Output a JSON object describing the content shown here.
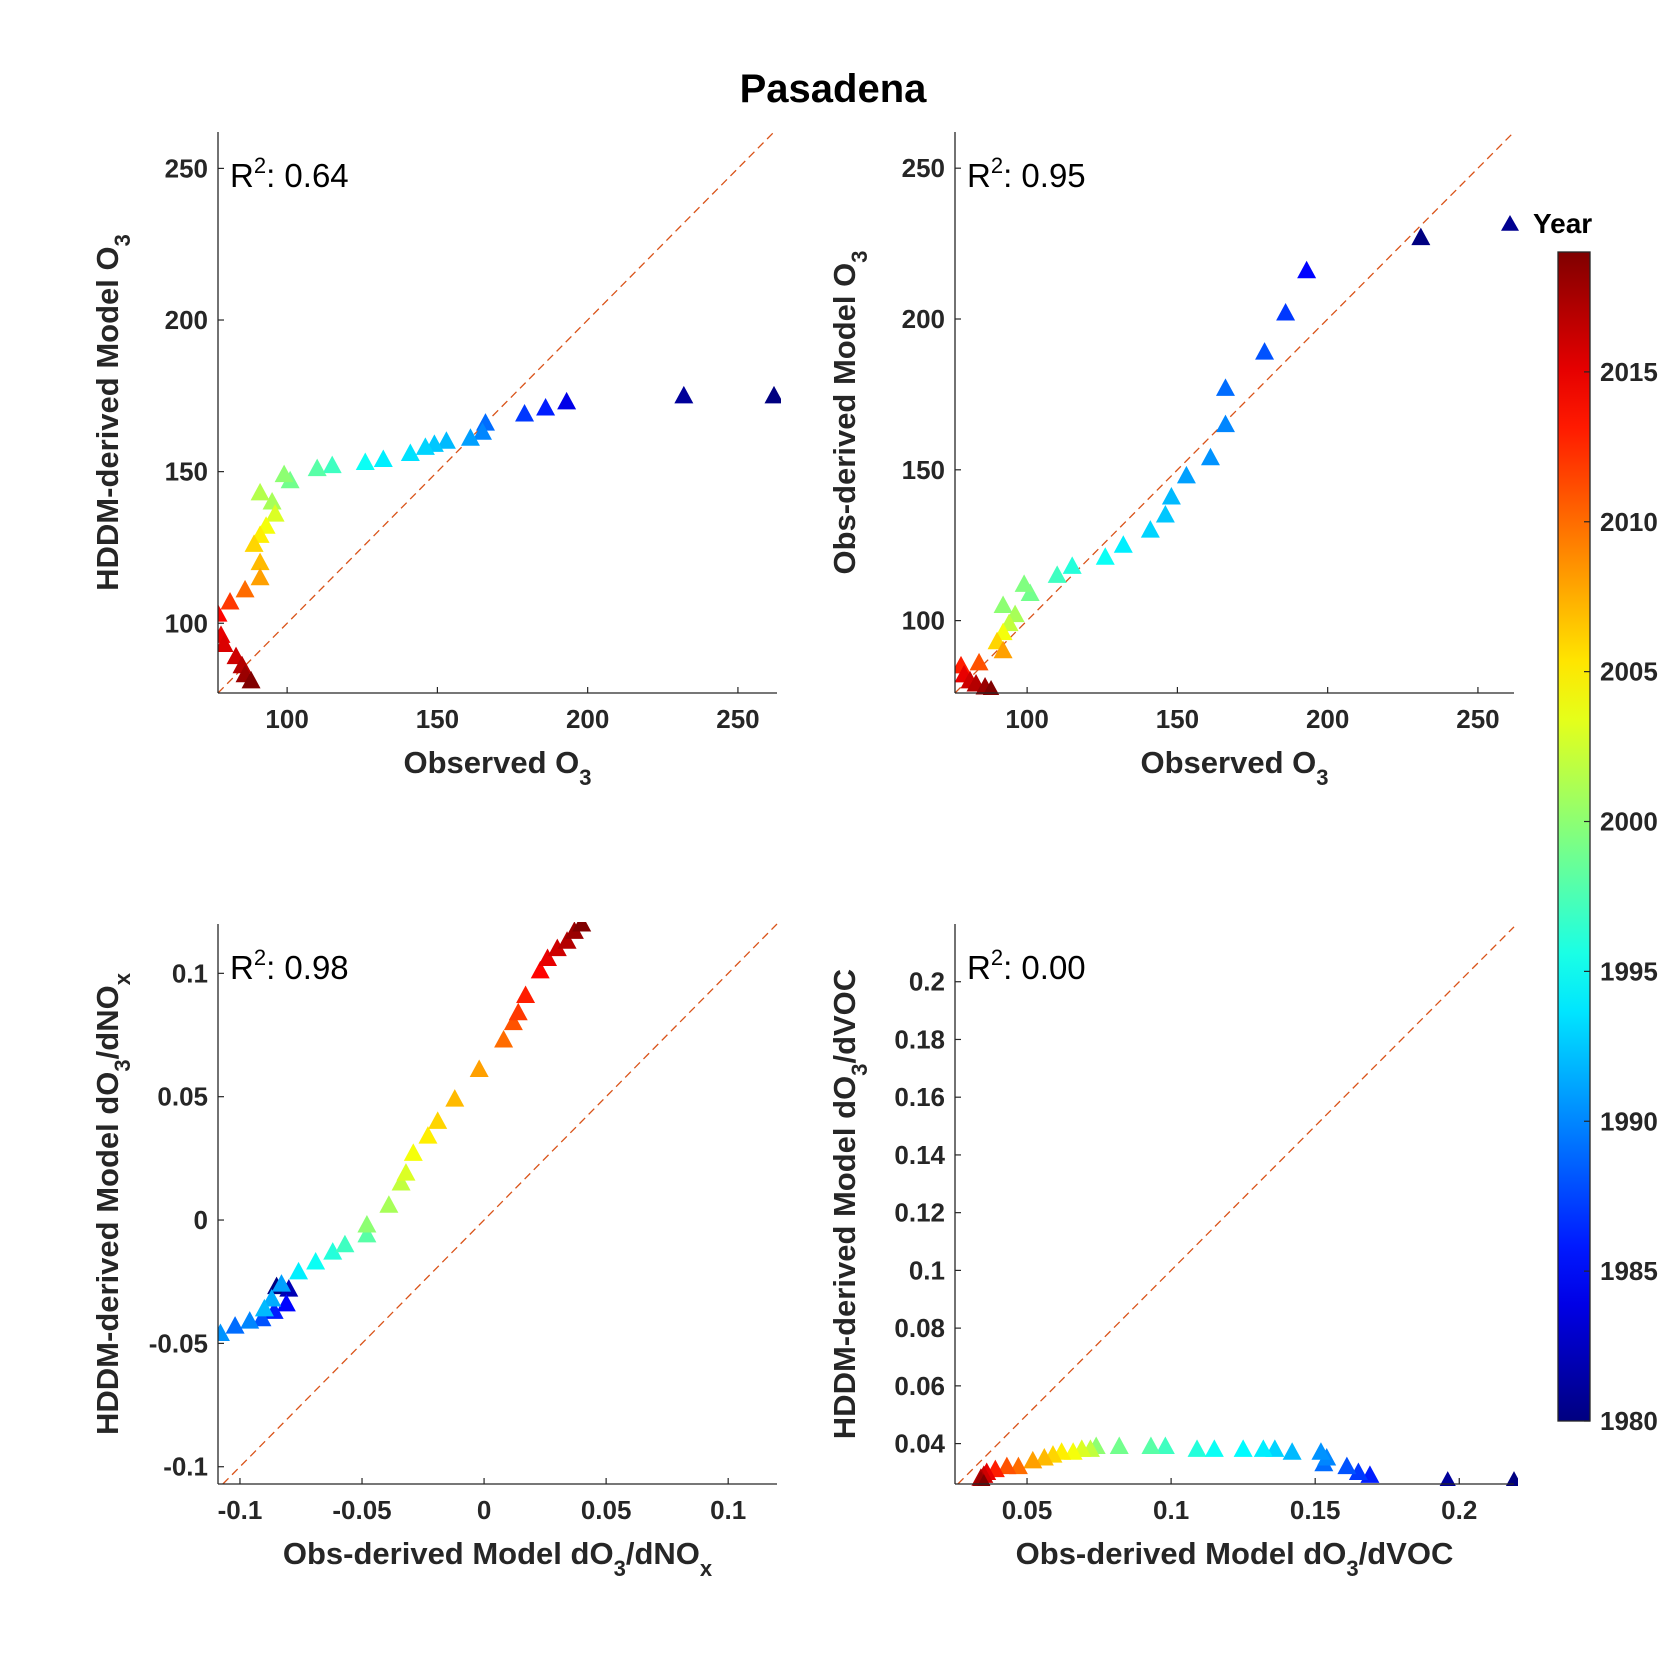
{
  "title": "Pasadena",
  "colorbar": {
    "title": "Year",
    "ticks": [
      1980,
      1985,
      1990,
      1995,
      2000,
      2005,
      2010,
      2015
    ],
    "range": [
      1980,
      2019
    ]
  },
  "chart_data": [
    {
      "type": "scatter",
      "id": "o3-hddm",
      "xlabel": "Observed O",
      "xlabel_sub": "3",
      "ylabel": "HDDM-derived Model O",
      "ylabel_sub": "3",
      "r2": "0.64",
      "xlim": [
        77,
        263
      ],
      "ylim": [
        77,
        262
      ],
      "xticks": [
        100,
        150,
        200,
        250
      ],
      "yticks": [
        100,
        150,
        200,
        250
      ],
      "xtick_labels": [
        "100",
        "150",
        "200",
        "250"
      ],
      "ytick_labels": [
        "100",
        "150",
        "200",
        "250"
      ],
      "points": [
        {
          "x": 262,
          "y": 175,
          "year": 1980
        },
        {
          "x": 232,
          "y": 175,
          "year": 1981
        },
        {
          "x": 193,
          "y": 173,
          "year": 1984
        },
        {
          "x": 186,
          "y": 171,
          "year": 1986
        },
        {
          "x": 179,
          "y": 169,
          "year": 1987
        },
        {
          "x": 166,
          "y": 166,
          "year": 1989
        },
        {
          "x": 165,
          "y": 163,
          "year": 1990
        },
        {
          "x": 161,
          "y": 161,
          "year": 1991
        },
        {
          "x": 153,
          "y": 160,
          "year": 1992
        },
        {
          "x": 149,
          "y": 159,
          "year": 1992.5
        },
        {
          "x": 146,
          "y": 158,
          "year": 1993
        },
        {
          "x": 141,
          "y": 156,
          "year": 1993.5
        },
        {
          "x": 132,
          "y": 154,
          "year": 1994
        },
        {
          "x": 126,
          "y": 153,
          "year": 1995
        },
        {
          "x": 115,
          "y": 152,
          "year": 1997
        },
        {
          "x": 110,
          "y": 151,
          "year": 1998
        },
        {
          "x": 101,
          "y": 147,
          "year": 1999
        },
        {
          "x": 99,
          "y": 149,
          "year": 2000
        },
        {
          "x": 95,
          "y": 140,
          "year": 2001
        },
        {
          "x": 91,
          "y": 143,
          "year": 2001.5
        },
        {
          "x": 96,
          "y": 136,
          "year": 2003
        },
        {
          "x": 93,
          "y": 132,
          "year": 2004
        },
        {
          "x": 91,
          "y": 129,
          "year": 2005
        },
        {
          "x": 89,
          "y": 126,
          "year": 2006
        },
        {
          "x": 91,
          "y": 120,
          "year": 2007
        },
        {
          "x": 91,
          "y": 115,
          "year": 2008
        },
        {
          "x": 86,
          "y": 111,
          "year": 2010
        },
        {
          "x": 81,
          "y": 107,
          "year": 2012
        },
        {
          "x": 77,
          "y": 103,
          "year": 2014
        },
        {
          "x": 78,
          "y": 96,
          "year": 2015
        },
        {
          "x": 79,
          "y": 93,
          "year": 2015.5
        },
        {
          "x": 83,
          "y": 89,
          "year": 2016
        },
        {
          "x": 85,
          "y": 86,
          "year": 2017
        },
        {
          "x": 86,
          "y": 83,
          "year": 2018
        },
        {
          "x": 88,
          "y": 81,
          "year": 2019
        }
      ]
    },
    {
      "type": "scatter",
      "id": "o3-obs",
      "xlabel": "Observed O",
      "xlabel_sub": "3",
      "ylabel": "Obs-derived Model O",
      "ylabel_sub": "3",
      "r2": "0.95",
      "xlim": [
        76,
        262
      ],
      "ylim": [
        76,
        262
      ],
      "xticks": [
        100,
        150,
        200,
        250
      ],
      "yticks": [
        100,
        150,
        200,
        250
      ],
      "xtick_labels": [
        "100",
        "150",
        "200",
        "250"
      ],
      "ytick_labels": [
        "100",
        "150",
        "200",
        "250"
      ],
      "points": [
        {
          "x": 231,
          "y": 227,
          "year": 1980
        },
        {
          "x": 193,
          "y": 216,
          "year": 1985
        },
        {
          "x": 186,
          "y": 202,
          "year": 1987
        },
        {
          "x": 179,
          "y": 189,
          "year": 1988
        },
        {
          "x": 166,
          "y": 177,
          "year": 1989
        },
        {
          "x": 166,
          "y": 165,
          "year": 1990
        },
        {
          "x": 161,
          "y": 154,
          "year": 1990.5
        },
        {
          "x": 153,
          "y": 148,
          "year": 1991
        },
        {
          "x": 148,
          "y": 141,
          "year": 1992
        },
        {
          "x": 146,
          "y": 135,
          "year": 1992.5
        },
        {
          "x": 141,
          "y": 130,
          "year": 1993
        },
        {
          "x": 132,
          "y": 125,
          "year": 1994
        },
        {
          "x": 126,
          "y": 121,
          "year": 1995
        },
        {
          "x": 115,
          "y": 118,
          "year": 1996
        },
        {
          "x": 110,
          "y": 115,
          "year": 1997
        },
        {
          "x": 101,
          "y": 109,
          "year": 1999
        },
        {
          "x": 99,
          "y": 112,
          "year": 1999.5
        },
        {
          "x": 92,
          "y": 105,
          "year": 2000
        },
        {
          "x": 96,
          "y": 102,
          "year": 2001
        },
        {
          "x": 94,
          "y": 99,
          "year": 2002
        },
        {
          "x": 92,
          "y": 96,
          "year": 2004
        },
        {
          "x": 90,
          "y": 93,
          "year": 2006
        },
        {
          "x": 92,
          "y": 90,
          "year": 2008
        },
        {
          "x": 84,
          "y": 86,
          "year": 2011
        },
        {
          "x": 78,
          "y": 85,
          "year": 2013
        },
        {
          "x": 79,
          "y": 82,
          "year": 2015
        },
        {
          "x": 81,
          "y": 80,
          "year": 2016
        },
        {
          "x": 83,
          "y": 79,
          "year": 2017
        },
        {
          "x": 86,
          "y": 78,
          "year": 2018
        },
        {
          "x": 88,
          "y": 77,
          "year": 2019
        }
      ]
    },
    {
      "type": "scatter",
      "id": "nox",
      "xlabel": "Obs-derived Model dO",
      "xlabel_sub": "3",
      "xlabel_mid": "/dNO",
      "xlabel_sub2": "x",
      "ylabel": "HDDM-derived Model dO",
      "ylabel_sub": "3",
      "ylabel_mid": "/dNO",
      "ylabel_sub2": "x",
      "r2": "0.98",
      "xlim": [
        -0.109,
        0.12
      ],
      "ylim": [
        -0.107,
        0.12
      ],
      "xticks": [
        -0.1,
        -0.05,
        0,
        0.05,
        0.1
      ],
      "yticks": [
        -0.1,
        -0.05,
        0,
        0.05,
        0.1
      ],
      "xtick_labels": [
        "-0.1",
        "-0.05",
        "0",
        "0.05",
        "0.1"
      ],
      "ytick_labels": [
        "-0.1",
        "-0.05",
        "0",
        "0.05",
        "0.1"
      ],
      "points": [
        {
          "x": -0.085,
          "y": -0.027,
          "year": 1980
        },
        {
          "x": -0.08,
          "y": -0.028,
          "year": 1982
        },
        {
          "x": -0.081,
          "y": -0.034,
          "year": 1985
        },
        {
          "x": -0.086,
          "y": -0.037,
          "year": 1986
        },
        {
          "x": -0.091,
          "y": -0.04,
          "year": 1988
        },
        {
          "x": -0.083,
          "y": -0.026,
          "year": 1991
        },
        {
          "x": -0.087,
          "y": -0.032,
          "year": 1991.5
        },
        {
          "x": -0.09,
          "y": -0.036,
          "year": 1992
        },
        {
          "x": -0.096,
          "y": -0.041,
          "year": 1990
        },
        {
          "x": -0.102,
          "y": -0.043,
          "year": 1989
        },
        {
          "x": -0.108,
          "y": -0.046,
          "year": 1990.5
        },
        {
          "x": -0.076,
          "y": -0.021,
          "year": 1994
        },
        {
          "x": -0.069,
          "y": -0.017,
          "year": 1995
        },
        {
          "x": -0.062,
          "y": -0.013,
          "year": 1996
        },
        {
          "x": -0.057,
          "y": -0.01,
          "year": 1997
        },
        {
          "x": -0.048,
          "y": -0.006,
          "year": 1998
        },
        {
          "x": -0.048,
          "y": -0.002,
          "year": 2000
        },
        {
          "x": -0.039,
          "y": 0.006,
          "year": 2001
        },
        {
          "x": -0.034,
          "y": 0.015,
          "year": 2002
        },
        {
          "x": -0.032,
          "y": 0.019,
          "year": 2003
        },
        {
          "x": -0.029,
          "y": 0.027,
          "year": 2004
        },
        {
          "x": -0.023,
          "y": 0.034,
          "year": 2005
        },
        {
          "x": -0.019,
          "y": 0.04,
          "year": 2006
        },
        {
          "x": -0.012,
          "y": 0.049,
          "year": 2007
        },
        {
          "x": -0.002,
          "y": 0.061,
          "year": 2008
        },
        {
          "x": 0.008,
          "y": 0.073,
          "year": 2010
        },
        {
          "x": 0.012,
          "y": 0.08,
          "year": 2011
        },
        {
          "x": 0.014,
          "y": 0.084,
          "year": 2012
        },
        {
          "x": 0.017,
          "y": 0.091,
          "year": 2013
        },
        {
          "x": 0.023,
          "y": 0.101,
          "year": 2014
        },
        {
          "x": 0.026,
          "y": 0.106,
          "year": 2015
        },
        {
          "x": 0.03,
          "y": 0.11,
          "year": 2016
        },
        {
          "x": 0.034,
          "y": 0.113,
          "year": 2017
        },
        {
          "x": 0.037,
          "y": 0.117,
          "year": 2018
        },
        {
          "x": 0.04,
          "y": 0.12,
          "year": 2019
        }
      ]
    },
    {
      "type": "scatter",
      "id": "voc",
      "xlabel": "Obs-derived Model dO",
      "xlabel_sub": "3",
      "xlabel_mid": "/dVOC",
      "xlabel_sub2": "",
      "ylabel": "HDDM-derived Model dO",
      "ylabel_sub": "3",
      "ylabel_mid": "/dVOC",
      "ylabel_sub2": "",
      "r2": "0.00",
      "xlim": [
        0.025,
        0.219
      ],
      "ylim": [
        0.026,
        0.22
      ],
      "xticks": [
        0.05,
        0.1,
        0.15,
        0.2
      ],
      "yticks": [
        0.04,
        0.06,
        0.08,
        0.1,
        0.12,
        0.14,
        0.16,
        0.18,
        0.2
      ],
      "xtick_labels": [
        "0.05",
        "0.1",
        "0.15",
        "0.2"
      ],
      "ytick_labels": [
        "0.04",
        "0.06",
        "0.08",
        "0.1",
        "0.12",
        "0.14",
        "0.16",
        "0.18",
        "0.2"
      ],
      "points": [
        {
          "x": 0.219,
          "y": 0.027,
          "year": 1980
        },
        {
          "x": 0.196,
          "y": 0.027,
          "year": 1981
        },
        {
          "x": 0.169,
          "y": 0.029,
          "year": 1986
        },
        {
          "x": 0.165,
          "y": 0.03,
          "year": 1987
        },
        {
          "x": 0.161,
          "y": 0.032,
          "year": 1988
        },
        {
          "x": 0.153,
          "y": 0.033,
          "year": 1989
        },
        {
          "x": 0.154,
          "y": 0.035,
          "year": 1990
        },
        {
          "x": 0.152,
          "y": 0.037,
          "year": 1990.5
        },
        {
          "x": 0.142,
          "y": 0.037,
          "year": 1992
        },
        {
          "x": 0.136,
          "y": 0.038,
          "year": 1993
        },
        {
          "x": 0.132,
          "y": 0.038,
          "year": 1994
        },
        {
          "x": 0.125,
          "y": 0.038,
          "year": 1994.5
        },
        {
          "x": 0.115,
          "y": 0.038,
          "year": 1995
        },
        {
          "x": 0.109,
          "y": 0.038,
          "year": 1996
        },
        {
          "x": 0.098,
          "y": 0.039,
          "year": 1997
        },
        {
          "x": 0.093,
          "y": 0.039,
          "year": 1998
        },
        {
          "x": 0.082,
          "y": 0.039,
          "year": 1999
        },
        {
          "x": 0.074,
          "y": 0.039,
          "year": 2000
        },
        {
          "x": 0.072,
          "y": 0.038,
          "year": 2002
        },
        {
          "x": 0.069,
          "y": 0.038,
          "year": 2003
        },
        {
          "x": 0.066,
          "y": 0.037,
          "year": 2004
        },
        {
          "x": 0.062,
          "y": 0.037,
          "year": 2005
        },
        {
          "x": 0.059,
          "y": 0.036,
          "year": 2006
        },
        {
          "x": 0.056,
          "y": 0.035,
          "year": 2007
        },
        {
          "x": 0.052,
          "y": 0.034,
          "year": 2008
        },
        {
          "x": 0.047,
          "y": 0.032,
          "year": 2010
        },
        {
          "x": 0.043,
          "y": 0.032,
          "year": 2011
        },
        {
          "x": 0.039,
          "y": 0.031,
          "year": 2013
        },
        {
          "x": 0.036,
          "y": 0.03,
          "year": 2015
        },
        {
          "x": 0.035,
          "y": 0.029,
          "year": 2016
        },
        {
          "x": 0.034,
          "y": 0.028,
          "year": 2017
        },
        {
          "x": 0.034,
          "y": 0.027,
          "year": 2018
        },
        {
          "x": 0.035,
          "y": 0.026,
          "year": 2019
        }
      ]
    }
  ]
}
